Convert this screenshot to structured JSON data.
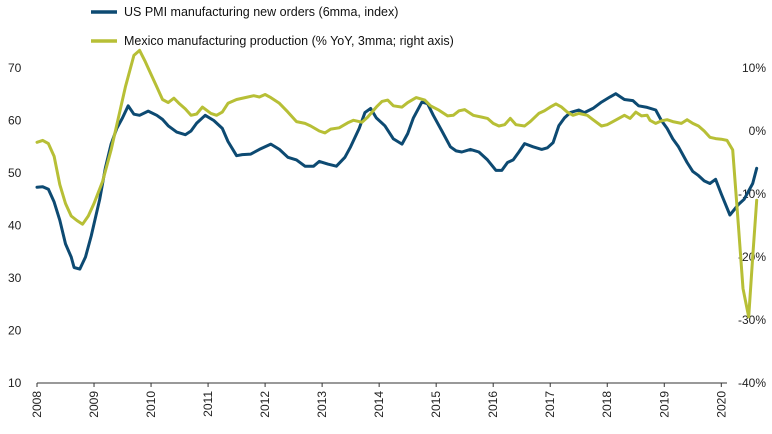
{
  "chart_data": {
    "type": "line",
    "title": "",
    "colors": {
      "us_pmi": "#0d4a72",
      "mexico": "#b7bf36",
      "axis": "#333333"
    },
    "legend_position": "top-left",
    "grid": false,
    "x_axis": {
      "min": 2008.0,
      "max": 2020.1,
      "tick_values": [
        2008,
        2009,
        2010,
        2011,
        2012,
        2013,
        2014,
        2015,
        2016,
        2017,
        2018,
        2019,
        2020
      ],
      "tick_labels": [
        "2008",
        "2009",
        "2010",
        "2011",
        "2012",
        "2013",
        "2014",
        "2015",
        "2016",
        "2017",
        "2018",
        "2019",
        "2020"
      ]
    },
    "y_left": {
      "ylim": [
        10,
        70
      ],
      "ticks": [
        10,
        20,
        30,
        40,
        50,
        60,
        70
      ],
      "tick_labels": [
        "10",
        "20",
        "30",
        "40",
        "50",
        "60",
        "70"
      ]
    },
    "y_right": {
      "ylim": [
        -40,
        10
      ],
      "ticks": [
        -40,
        -30,
        -20,
        -10,
        0,
        10
      ],
      "tick_labels": [
        "-40%",
        "-30%",
        "-20%",
        "-10%",
        "0%",
        "10%"
      ]
    },
    "series": [
      {
        "name": "US PMI manufacturing new orders (6mma, index)",
        "axis": "left",
        "points": [
          [
            2008.0,
            47.3
          ],
          [
            2008.1,
            47.4
          ],
          [
            2008.2,
            46.9
          ],
          [
            2008.3,
            44.5
          ],
          [
            2008.4,
            41.0
          ],
          [
            2008.5,
            36.5
          ],
          [
            2008.6,
            34.0
          ],
          [
            2008.65,
            32.0
          ],
          [
            2008.75,
            31.7
          ],
          [
            2008.85,
            34.0
          ],
          [
            2008.95,
            38.0
          ],
          [
            2009.1,
            45.0
          ],
          [
            2009.2,
            51.0
          ],
          [
            2009.3,
            55.5
          ],
          [
            2009.4,
            58.5
          ],
          [
            2009.5,
            60.5
          ],
          [
            2009.6,
            62.8
          ],
          [
            2009.7,
            61.2
          ],
          [
            2009.8,
            61.0
          ],
          [
            2009.95,
            61.8
          ],
          [
            2010.1,
            61.0
          ],
          [
            2010.2,
            60.2
          ],
          [
            2010.3,
            59.0
          ],
          [
            2010.45,
            57.8
          ],
          [
            2010.6,
            57.3
          ],
          [
            2010.7,
            58.0
          ],
          [
            2010.8,
            59.5
          ],
          [
            2010.95,
            61.0
          ],
          [
            2011.1,
            60.0
          ],
          [
            2011.25,
            58.5
          ],
          [
            2011.35,
            56.0
          ],
          [
            2011.5,
            53.3
          ],
          [
            2011.6,
            53.5
          ],
          [
            2011.75,
            53.6
          ],
          [
            2011.9,
            54.5
          ],
          [
            2012.1,
            55.5
          ],
          [
            2012.25,
            54.5
          ],
          [
            2012.4,
            53.0
          ],
          [
            2012.55,
            52.5
          ],
          [
            2012.7,
            51.3
          ],
          [
            2012.85,
            51.3
          ],
          [
            2012.95,
            52.2
          ],
          [
            2013.1,
            51.7
          ],
          [
            2013.25,
            51.3
          ],
          [
            2013.4,
            53.0
          ],
          [
            2013.5,
            55.0
          ],
          [
            2013.65,
            58.5
          ],
          [
            2013.75,
            61.5
          ],
          [
            2013.85,
            62.3
          ],
          [
            2013.95,
            60.5
          ],
          [
            2014.1,
            59.0
          ],
          [
            2014.25,
            56.5
          ],
          [
            2014.4,
            55.5
          ],
          [
            2014.5,
            57.5
          ],
          [
            2014.6,
            60.5
          ],
          [
            2014.75,
            63.5
          ],
          [
            2014.85,
            63.2
          ],
          [
            2014.95,
            61.0
          ],
          [
            2015.1,
            58.0
          ],
          [
            2015.25,
            55.0
          ],
          [
            2015.35,
            54.2
          ],
          [
            2015.45,
            54.0
          ],
          [
            2015.6,
            54.5
          ],
          [
            2015.75,
            54.0
          ],
          [
            2015.9,
            52.5
          ],
          [
            2016.05,
            50.5
          ],
          [
            2016.15,
            50.5
          ],
          [
            2016.25,
            52.0
          ],
          [
            2016.35,
            52.5
          ],
          [
            2016.45,
            54.0
          ],
          [
            2016.55,
            55.6
          ],
          [
            2016.7,
            55.0
          ],
          [
            2016.85,
            54.5
          ],
          [
            2016.95,
            54.8
          ],
          [
            2017.05,
            55.8
          ],
          [
            2017.15,
            59.0
          ],
          [
            2017.25,
            60.5
          ],
          [
            2017.35,
            61.5
          ],
          [
            2017.5,
            62.0
          ],
          [
            2017.6,
            61.5
          ],
          [
            2017.75,
            62.3
          ],
          [
            2017.9,
            63.5
          ],
          [
            2018.05,
            64.5
          ],
          [
            2018.15,
            65.1
          ],
          [
            2018.3,
            64.0
          ],
          [
            2018.45,
            63.8
          ],
          [
            2018.55,
            62.8
          ],
          [
            2018.7,
            62.5
          ],
          [
            2018.85,
            62.0
          ],
          [
            2018.95,
            60.0
          ],
          [
            2019.05,
            58.5
          ],
          [
            2019.15,
            56.5
          ],
          [
            2019.25,
            55.0
          ],
          [
            2019.4,
            52.0
          ],
          [
            2019.5,
            50.3
          ],
          [
            2019.6,
            49.5
          ],
          [
            2019.7,
            48.5
          ],
          [
            2019.8,
            48.0
          ],
          [
            2019.9,
            48.8
          ],
          [
            2020.0,
            46.0
          ],
          [
            2020.15,
            42.0
          ],
          [
            2020.3,
            44.0
          ],
          [
            2020.4,
            45.0
          ],
          [
            2020.55,
            48.0
          ],
          [
            2020.62,
            50.9
          ]
        ]
      },
      {
        "name": "Mexico manufacturing production (% YoY, 3mma; right axis)",
        "axis": "right",
        "points": [
          [
            2008.0,
            -1.8
          ],
          [
            2008.1,
            -1.5
          ],
          [
            2008.2,
            -2.0
          ],
          [
            2008.3,
            -4.0
          ],
          [
            2008.4,
            -8.5
          ],
          [
            2008.5,
            -11.5
          ],
          [
            2008.6,
            -13.5
          ],
          [
            2008.7,
            -14.2
          ],
          [
            2008.8,
            -14.8
          ],
          [
            2008.9,
            -13.5
          ],
          [
            2009.0,
            -11.5
          ],
          [
            2009.15,
            -8.0
          ],
          [
            2009.3,
            -3.0
          ],
          [
            2009.45,
            3.0
          ],
          [
            2009.55,
            7.0
          ],
          [
            2009.7,
            12.0
          ],
          [
            2009.8,
            12.8
          ],
          [
            2009.9,
            11.0
          ],
          [
            2010.0,
            9.0
          ],
          [
            2010.1,
            7.0
          ],
          [
            2010.2,
            5.0
          ],
          [
            2010.3,
            4.5
          ],
          [
            2010.4,
            5.2
          ],
          [
            2010.5,
            4.3
          ],
          [
            2010.6,
            3.5
          ],
          [
            2010.7,
            2.5
          ],
          [
            2010.8,
            2.7
          ],
          [
            2010.9,
            3.8
          ],
          [
            2011.05,
            2.8
          ],
          [
            2011.15,
            2.5
          ],
          [
            2011.25,
            3.0
          ],
          [
            2011.35,
            4.4
          ],
          [
            2011.5,
            5.0
          ],
          [
            2011.65,
            5.3
          ],
          [
            2011.8,
            5.6
          ],
          [
            2011.9,
            5.4
          ],
          [
            2012.0,
            5.8
          ],
          [
            2012.1,
            5.3
          ],
          [
            2012.25,
            4.4
          ],
          [
            2012.4,
            3.0
          ],
          [
            2012.55,
            1.5
          ],
          [
            2012.7,
            1.2
          ],
          [
            2012.8,
            0.8
          ],
          [
            2012.95,
            0.0
          ],
          [
            2013.05,
            -0.3
          ],
          [
            2013.15,
            0.3
          ],
          [
            2013.3,
            0.5
          ],
          [
            2013.45,
            1.3
          ],
          [
            2013.55,
            1.7
          ],
          [
            2013.7,
            1.4
          ],
          [
            2013.8,
            2.2
          ],
          [
            2013.95,
            3.8
          ],
          [
            2014.05,
            4.7
          ],
          [
            2014.15,
            4.9
          ],
          [
            2014.25,
            4.0
          ],
          [
            2014.4,
            3.8
          ],
          [
            2014.5,
            4.5
          ],
          [
            2014.65,
            5.3
          ],
          [
            2014.8,
            4.9
          ],
          [
            2014.9,
            4.0
          ],
          [
            2015.05,
            3.3
          ],
          [
            2015.2,
            2.4
          ],
          [
            2015.3,
            2.5
          ],
          [
            2015.4,
            3.2
          ],
          [
            2015.5,
            3.4
          ],
          [
            2015.65,
            2.5
          ],
          [
            2015.8,
            2.2
          ],
          [
            2015.9,
            2.0
          ],
          [
            2016.0,
            1.2
          ],
          [
            2016.1,
            0.8
          ],
          [
            2016.2,
            1.0
          ],
          [
            2016.3,
            2.0
          ],
          [
            2016.4,
            1.0
          ],
          [
            2016.55,
            0.8
          ],
          [
            2016.65,
            1.5
          ],
          [
            2016.8,
            2.8
          ],
          [
            2016.9,
            3.2
          ],
          [
            2017.0,
            3.8
          ],
          [
            2017.1,
            4.3
          ],
          [
            2017.2,
            3.8
          ],
          [
            2017.3,
            3.0
          ],
          [
            2017.4,
            2.5
          ],
          [
            2017.5,
            2.8
          ],
          [
            2017.65,
            2.5
          ],
          [
            2017.75,
            1.8
          ],
          [
            2017.9,
            0.8
          ],
          [
            2018.0,
            1.0
          ],
          [
            2018.1,
            1.5
          ],
          [
            2018.2,
            2.0
          ],
          [
            2018.3,
            2.5
          ],
          [
            2018.4,
            2.0
          ],
          [
            2018.5,
            3.0
          ],
          [
            2018.6,
            2.4
          ],
          [
            2018.7,
            2.5
          ],
          [
            2018.75,
            1.7
          ],
          [
            2018.85,
            1.2
          ],
          [
            2018.95,
            1.6
          ],
          [
            2019.05,
            1.8
          ],
          [
            2019.15,
            1.5
          ],
          [
            2019.3,
            1.2
          ],
          [
            2019.4,
            1.8
          ],
          [
            2019.5,
            1.2
          ],
          [
            2019.6,
            0.8
          ],
          [
            2019.7,
            0.0
          ],
          [
            2019.8,
            -1.0
          ],
          [
            2019.9,
            -1.2
          ],
          [
            2020.0,
            -1.3
          ],
          [
            2020.1,
            -1.5
          ],
          [
            2020.2,
            -3.0
          ],
          [
            2020.3,
            -15.0
          ],
          [
            2020.38,
            -25.0
          ],
          [
            2020.48,
            -29.5
          ],
          [
            2020.55,
            -20.0
          ],
          [
            2020.62,
            -11.0
          ]
        ]
      }
    ]
  }
}
